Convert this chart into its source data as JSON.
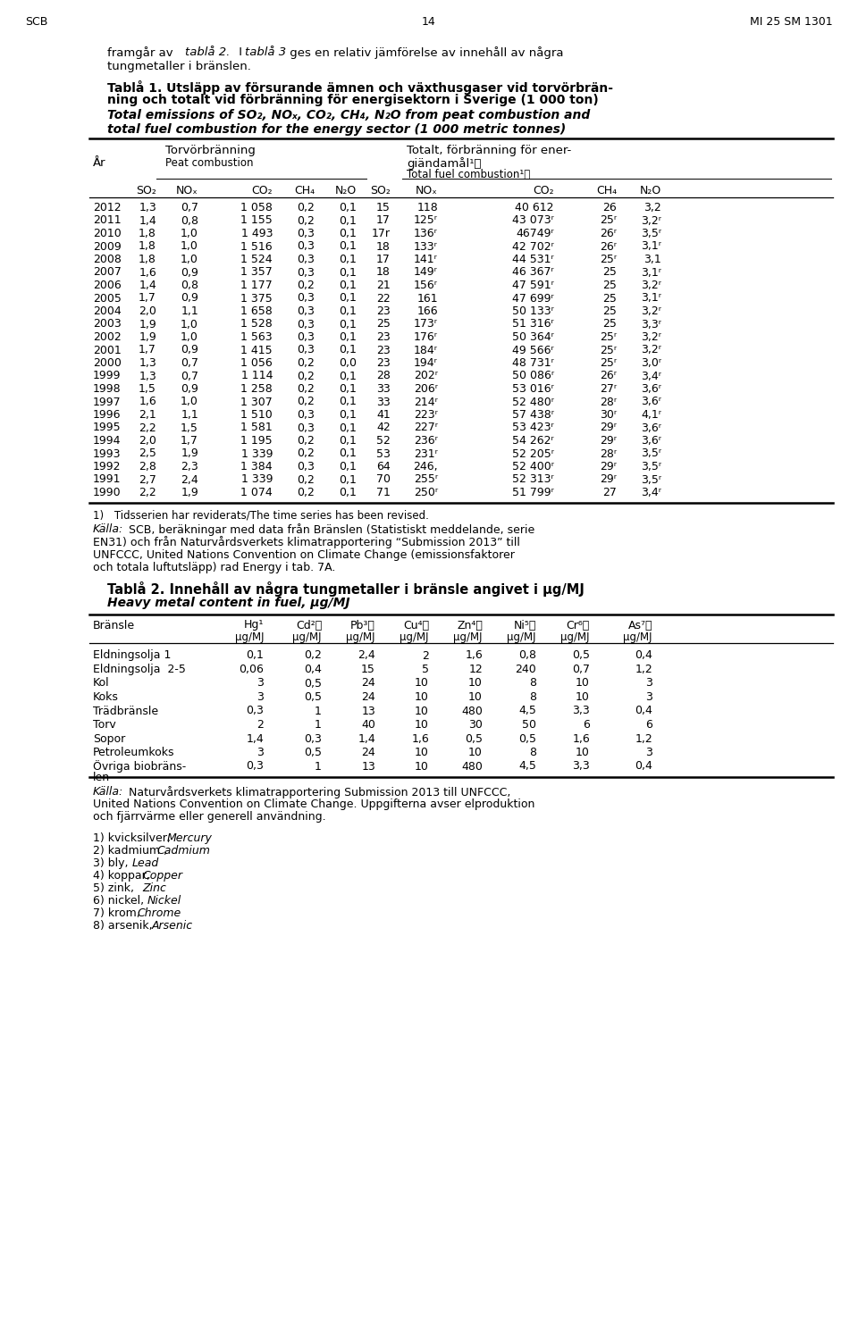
{
  "page_header_left": "SCB",
  "page_header_center": "14",
  "page_header_right": "MI 25 SM 1301",
  "table1_data": [
    [
      "2012",
      "1,3",
      "0,7",
      "1 058",
      "0,2",
      "0,1",
      "15",
      "118",
      "40 612",
      "26",
      "3,2"
    ],
    [
      "2011",
      "1,4",
      "0,8",
      "1 155",
      "0,2",
      "0,1",
      "17",
      "125ʳ",
      "43 073ʳ",
      "25ʳ",
      "3,2ʳ"
    ],
    [
      "2010",
      "1,8",
      "1,0",
      "1 493",
      "0,3",
      "0,1",
      "17r",
      "136ʳ",
      "46749ʳ",
      "26ʳ",
      "3,5ʳ"
    ],
    [
      "2009",
      "1,8",
      "1,0",
      "1 516",
      "0,3",
      "0,1",
      "18",
      "133ʳ",
      "42 702ʳ",
      "26ʳ",
      "3,1ʳ"
    ],
    [
      "2008",
      "1,8",
      "1,0",
      "1 524",
      "0,3",
      "0,1",
      "17",
      "141ʳ",
      "44 531ʳ",
      "25ʳ",
      "3,1"
    ],
    [
      "2007",
      "1,6",
      "0,9",
      "1 357",
      "0,3",
      "0,1",
      "18",
      "149ʳ",
      "46 367ʳ",
      "25",
      "3,1ʳ"
    ],
    [
      "2006",
      "1,4",
      "0,8",
      "1 177",
      "0,2",
      "0,1",
      "21",
      "156ʳ",
      "47 591ʳ",
      "25",
      "3,2ʳ"
    ],
    [
      "2005",
      "1,7",
      "0,9",
      "1 375",
      "0,3",
      "0,1",
      "22",
      "161",
      "47 699ʳ",
      "25",
      "3,1ʳ"
    ],
    [
      "2004",
      "2,0",
      "1,1",
      "1 658",
      "0,3",
      "0,1",
      "23",
      "166",
      "50 133ʳ",
      "25",
      "3,2ʳ"
    ],
    [
      "2003",
      "1,9",
      "1,0",
      "1 528",
      "0,3",
      "0,1",
      "25",
      "173ʳ",
      "51 316ʳ",
      "25",
      "3,3ʳ"
    ],
    [
      "2002",
      "1,9",
      "1,0",
      "1 563",
      "0,3",
      "0,1",
      "23",
      "176ʳ",
      "50 364ʳ",
      "25ʳ",
      "3,2ʳ"
    ],
    [
      "2001",
      "1,7",
      "0,9",
      "1 415",
      "0,3",
      "0,1",
      "23",
      "184ʳ",
      "49 566ʳ",
      "25ʳ",
      "3,2ʳ"
    ],
    [
      "2000",
      "1,3",
      "0,7",
      "1 056",
      "0,2",
      "0,0",
      "23",
      "194ʳ",
      "48 731ʳ",
      "25ʳ",
      "3,0ʳ"
    ],
    [
      "1999",
      "1,3",
      "0,7",
      "1 114",
      "0,2",
      "0,1",
      "28",
      "202ʳ",
      "50 086ʳ",
      "26ʳ",
      "3,4ʳ"
    ],
    [
      "1998",
      "1,5",
      "0,9",
      "1 258",
      "0,2",
      "0,1",
      "33",
      "206ʳ",
      "53 016ʳ",
      "27ʳ",
      "3,6ʳ"
    ],
    [
      "1997",
      "1,6",
      "1,0",
      "1 307",
      "0,2",
      "0,1",
      "33",
      "214ʳ",
      "52 480ʳ",
      "28ʳ",
      "3,6ʳ"
    ],
    [
      "1996",
      "2,1",
      "1,1",
      "1 510",
      "0,3",
      "0,1",
      "41",
      "223ʳ",
      "57 438ʳ",
      "30ʳ",
      "4,1ʳ"
    ],
    [
      "1995",
      "2,2",
      "1,5",
      "1 581",
      "0,3",
      "0,1",
      "42",
      "227ʳ",
      "53 423ʳ",
      "29ʳ",
      "3,6ʳ"
    ],
    [
      "1994",
      "2,0",
      "1,7",
      "1 195",
      "0,2",
      "0,1",
      "52",
      "236ʳ",
      "54 262ʳ",
      "29ʳ",
      "3,6ʳ"
    ],
    [
      "1993",
      "2,5",
      "1,9",
      "1 339",
      "0,2",
      "0,1",
      "53",
      "231ʳ",
      "52 205ʳ",
      "28ʳ",
      "3,5ʳ"
    ],
    [
      "1992",
      "2,8",
      "2,3",
      "1 384",
      "0,3",
      "0,1",
      "64",
      "246,",
      "52 400ʳ",
      "29ʳ",
      "3,5ʳ"
    ],
    [
      "1991",
      "2,7",
      "2,4",
      "1 339",
      "0,2",
      "0,1",
      "70",
      "255ʳ",
      "52 313ʳ",
      "29ʳ",
      "3,5ʳ"
    ],
    [
      "1990",
      "2,2",
      "1,9",
      "1 074",
      "0,2",
      "0,1",
      "71",
      "250ʳ",
      "51 799ʳ",
      "27",
      "3,4ʳ"
    ]
  ],
  "table2_data": [
    [
      "Eldningsolja 1",
      "0,1",
      "0,2",
      "2,4",
      "2",
      "1,6",
      "0,8",
      "0,5",
      "0,4"
    ],
    [
      "Eldningsolja  2-5",
      "0,06",
      "0,4",
      "15",
      "5",
      "12",
      "240",
      "0,7",
      "1,2"
    ],
    [
      "Kol",
      "3",
      "0,5",
      "24",
      "10",
      "10",
      "8",
      "10",
      "3"
    ],
    [
      "Koks",
      "3",
      "0,5",
      "24",
      "10",
      "10",
      "8",
      "10",
      "3"
    ],
    [
      "Trädbränsle",
      "0,3",
      "1",
      "13",
      "10",
      "480",
      "4,5",
      "3,3",
      "0,4"
    ],
    [
      "Torv",
      "2",
      "1",
      "40",
      "10",
      "30",
      "50",
      "6",
      "6"
    ],
    [
      "Sopor",
      "1,4",
      "0,3",
      "1,4",
      "1,6",
      "0,5",
      "0,5",
      "1,6",
      "1,2"
    ],
    [
      "Petroleumkoks",
      "3",
      "0,5",
      "24",
      "10",
      "10",
      "8",
      "10",
      "3"
    ],
    [
      "Övriga biobräns-\nlen",
      "0,3",
      "1",
      "13",
      "10",
      "480",
      "4,5",
      "3,3",
      "0,4"
    ]
  ]
}
